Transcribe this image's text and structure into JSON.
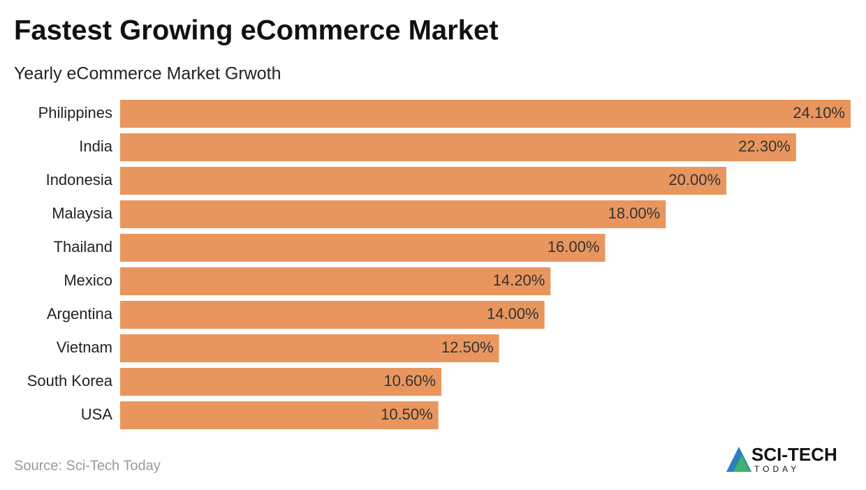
{
  "chart_data": {
    "type": "bar",
    "orientation": "horizontal",
    "title": "Fastest Growing eCommerce Market",
    "subtitle": "Yearly eCommerce Market Grwoth",
    "categories": [
      "Philippines",
      "India",
      "Indonesia",
      "Malaysia",
      "Thailand",
      "Mexico",
      "Argentina",
      "Vietnam",
      "South Korea",
      "USA"
    ],
    "values": [
      24.1,
      22.3,
      20.0,
      18.0,
      16.0,
      14.2,
      14.0,
      12.5,
      10.6,
      10.5
    ],
    "value_labels": [
      "24.10%",
      "22.30%",
      "20.00%",
      "18.00%",
      "16.00%",
      "14.20%",
      "14.00%",
      "12.50%",
      "10.60%",
      "10.50%"
    ],
    "color": "#e8965e",
    "source": "Source: Sci-Tech Today"
  },
  "logo": {
    "name": "SCI-TECH",
    "tagline": "TODAY"
  }
}
